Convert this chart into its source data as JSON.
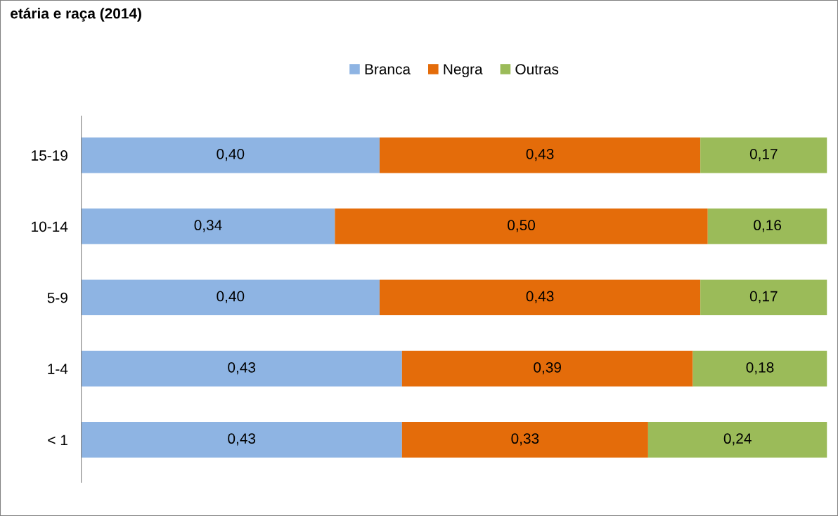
{
  "chart_data": {
    "type": "bar",
    "orientation": "horizontal",
    "stacked": true,
    "title": "etária e raça (2014)",
    "categories": [
      "15-19",
      "10-14",
      "5-9",
      "1-4",
      "< 1"
    ],
    "series": [
      {
        "name": "Branca",
        "color": "#8eb4e3",
        "values": [
          0.4,
          0.34,
          0.4,
          0.43,
          0.43
        ],
        "value_labels": [
          "0,40",
          "0,34",
          "0,40",
          "0,43",
          "0,43"
        ]
      },
      {
        "name": "Negra",
        "color": "#e46c0a",
        "values": [
          0.43,
          0.5,
          0.43,
          0.39,
          0.33
        ],
        "value_labels": [
          "0,43",
          "0,50",
          "0,43",
          "0,39",
          "0,33"
        ]
      },
      {
        "name": "Outras",
        "color": "#9bbb59",
        "values": [
          0.17,
          0.16,
          0.17,
          0.18,
          0.24
        ],
        "value_labels": [
          "0,17",
          "0,16",
          "0,17",
          "0,18",
          "0,24"
        ]
      }
    ],
    "legend": "top",
    "grid": false,
    "tick_labels": "y"
  }
}
